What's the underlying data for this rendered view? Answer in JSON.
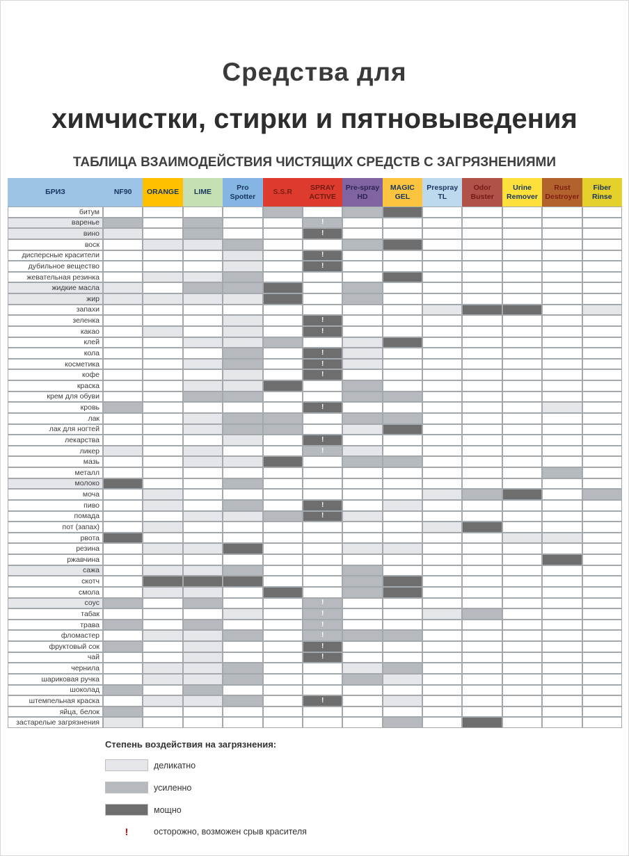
{
  "title_line1": "Средства для",
  "title_line2": "химчистки, стирки и пятновыведения",
  "subtitle": "ТАБЛИЦА ВЗАИМОДЕЙСТВИЯ ЧИСТЯЩИХ СРЕДСТВ С ЗАГРЯЗНЕНИЯМИ",
  "colors": {
    "level1": "#e4e6e9",
    "level2": "#b6b9bd",
    "level3": "#6e6e6e",
    "grid": "#a3a8ad",
    "warn_red": "#c00000"
  },
  "legend": {
    "title": "Степень воздействия на загрязнения:",
    "items": [
      {
        "level": "1",
        "label": "деликатно"
      },
      {
        "level": "2",
        "label": "усиленно"
      },
      {
        "level": "3",
        "label": "мощно"
      }
    ],
    "warning_symbol": "!",
    "warning_label": "осторожно, возможен срыв красителя"
  },
  "chart_data": {
    "type": "heatmap",
    "title": "ТАБЛИЦА ВЗАИМОДЕЙСТВИЯ ЧИСТЯЩИХ СРЕДСТВ С ЗАГРЯЗНЕНИЯМИ",
    "value_scale": {
      "": "нет воздействия",
      "1": "деликатно",
      "2": "усиленно",
      "3": "мощно",
      "!": "осторожно, возможен срыв красителя"
    },
    "columns": [
      {
        "label": "БРИЗ",
        "bg": "#9dc3e6",
        "fg": "#17365d"
      },
      {
        "label": "NF90",
        "bg": "#9dc3e6",
        "fg": "#17365d"
      },
      {
        "label": "ORANGE",
        "bg": "#ffc000",
        "fg": "#17365d"
      },
      {
        "label": "LIME",
        "bg": "#c6e0b4",
        "fg": "#17365d"
      },
      {
        "label": "Pro Spotter",
        "bg": "#85b5e2",
        "fg": "#17365d"
      },
      {
        "label": "S.S.R",
        "bg": "#dd3b2d",
        "fg": "#7f1d12"
      },
      {
        "label": "SPRAY ACTIVE",
        "bg": "#dd3b2d",
        "fg": "#701a10"
      },
      {
        "label": "Pre-spray HD",
        "bg": "#8064a2",
        "fg": "#2e2452"
      },
      {
        "label": "MAGIC GEL",
        "bg": "#fdc440",
        "fg": "#17365d"
      },
      {
        "label": "Prespray TL",
        "bg": "#bdd9ee",
        "fg": "#17365d"
      },
      {
        "label": "Odor Buster",
        "bg": "#b0524a",
        "fg": "#731a12"
      },
      {
        "label": "Urine Remover",
        "bg": "#fee03d",
        "fg": "#17365d"
      },
      {
        "label": "Rust Destroyer",
        "bg": "#b2622d",
        "fg": "#7f1d12"
      },
      {
        "label": "Fiber Rinse",
        "bg": "#e4cf2b",
        "fg": "#17365d"
      }
    ],
    "rows": [
      {
        "label": "битум",
        "values": [
          "",
          "",
          "",
          "",
          "",
          "2",
          "",
          "2",
          "3",
          "",
          "",
          "",
          "",
          ""
        ]
      },
      {
        "label": "варенье",
        "values": [
          "1",
          "2",
          "",
          "2",
          "",
          "",
          "2!",
          "",
          "",
          "",
          "",
          "",
          "",
          ""
        ]
      },
      {
        "label": "вино",
        "values": [
          "1",
          "1",
          "",
          "2",
          "",
          "",
          "3!",
          "",
          "",
          "",
          "",
          "",
          "",
          ""
        ]
      },
      {
        "label": "воск",
        "values": [
          "",
          "",
          "1",
          "1",
          "2",
          "",
          "",
          "2",
          "3",
          "",
          "",
          "",
          "",
          ""
        ]
      },
      {
        "label": "дисперсные красители",
        "values": [
          "",
          "",
          "",
          "",
          "1",
          "",
          "3!",
          "",
          "",
          "",
          "",
          "",
          "",
          ""
        ]
      },
      {
        "label": "дубильное вещество",
        "values": [
          "",
          "",
          "",
          "",
          "1",
          "",
          "3!",
          "",
          "",
          "",
          "",
          "",
          "",
          ""
        ]
      },
      {
        "label": "жевательная резинка",
        "values": [
          "",
          "",
          "1",
          "1",
          "2",
          "",
          "",
          "",
          "3",
          "",
          "",
          "",
          "",
          ""
        ]
      },
      {
        "label": "жидкие масла",
        "values": [
          "1",
          "1",
          "",
          "2",
          "2",
          "3",
          "",
          "2",
          "",
          "",
          "",
          "",
          "",
          ""
        ]
      },
      {
        "label": "жир",
        "values": [
          "1",
          "1",
          "1",
          "1",
          "1",
          "3",
          "",
          "2",
          "",
          "",
          "",
          "",
          "",
          ""
        ]
      },
      {
        "label": "запахи",
        "values": [
          "",
          "",
          "",
          "",
          "",
          "",
          "",
          "",
          "",
          "1",
          "3",
          "3",
          "",
          "1"
        ]
      },
      {
        "label": "зеленка",
        "values": [
          "",
          "",
          "",
          "",
          "1",
          "",
          "3!",
          "",
          "",
          "",
          "",
          "",
          "",
          ""
        ]
      },
      {
        "label": "какао",
        "values": [
          "",
          "",
          "1",
          "",
          "1",
          "",
          "3!",
          "",
          "",
          "",
          "",
          "",
          "",
          ""
        ]
      },
      {
        "label": "клей",
        "values": [
          "",
          "",
          "",
          "1",
          "1",
          "2",
          "",
          "1",
          "3",
          "",
          "",
          "",
          "",
          ""
        ]
      },
      {
        "label": "кола",
        "values": [
          "",
          "",
          "",
          "",
          "2",
          "",
          "3!",
          "1",
          "",
          "",
          "",
          "",
          "",
          ""
        ]
      },
      {
        "label": "косметика",
        "values": [
          "",
          "",
          "",
          "1",
          "2",
          "",
          "3!",
          "1",
          "",
          "",
          "",
          "",
          "",
          ""
        ]
      },
      {
        "label": "кофе",
        "values": [
          "",
          "",
          "",
          "",
          "1",
          "",
          "3!",
          "",
          "",
          "",
          "",
          "",
          "",
          ""
        ]
      },
      {
        "label": "краска",
        "values": [
          "",
          "",
          "",
          "1",
          "1",
          "3",
          "",
          "2",
          "",
          "",
          "",
          "",
          "",
          ""
        ]
      },
      {
        "label": "крем для обуви",
        "values": [
          "",
          "",
          "",
          "2",
          "2",
          "",
          "",
          "2",
          "2",
          "",
          "",
          "",
          "",
          ""
        ]
      },
      {
        "label": "кровь",
        "values": [
          "",
          "2",
          "",
          "",
          "",
          "",
          "3!",
          "",
          "",
          "",
          "",
          "",
          "1",
          ""
        ]
      },
      {
        "label": "лак",
        "values": [
          "",
          "",
          "",
          "1",
          "2",
          "2",
          "",
          "2",
          "2",
          "",
          "",
          "",
          "",
          ""
        ]
      },
      {
        "label": "лак для ногтей",
        "values": [
          "",
          "",
          "",
          "1",
          "2",
          "2",
          "",
          "1",
          "3",
          "",
          "",
          "",
          "",
          ""
        ]
      },
      {
        "label": "лекарства",
        "values": [
          "",
          "",
          "",
          "",
          "1",
          "",
          "3!",
          "",
          "",
          "",
          "",
          "",
          "",
          ""
        ]
      },
      {
        "label": "ликер",
        "values": [
          "",
          "1",
          "",
          "1",
          "",
          "",
          "2!",
          "1",
          "",
          "",
          "",
          "",
          "",
          ""
        ]
      },
      {
        "label": "мазь",
        "values": [
          "",
          "",
          "",
          "1",
          "1",
          "3",
          "",
          "2",
          "2",
          "",
          "",
          "",
          "",
          ""
        ]
      },
      {
        "label": "металл",
        "values": [
          "",
          "",
          "",
          "",
          "",
          "",
          "",
          "",
          "",
          "",
          "",
          "",
          "2",
          ""
        ]
      },
      {
        "label": "молоко",
        "values": [
          "1",
          "3",
          "",
          "",
          "2",
          "",
          "",
          "",
          "",
          "",
          "",
          "",
          "",
          ""
        ]
      },
      {
        "label": "моча",
        "values": [
          "",
          "",
          "1",
          "",
          "",
          "",
          "",
          "",
          "",
          "1",
          "2",
          "3",
          "",
          "2"
        ]
      },
      {
        "label": "пиво",
        "values": [
          "",
          "",
          "1",
          "",
          "2",
          "",
          "3!",
          "",
          "1",
          "",
          "",
          "",
          "",
          ""
        ]
      },
      {
        "label": "помада",
        "values": [
          "",
          "",
          "",
          "1",
          "1",
          "2",
          "3!",
          "1",
          "",
          "",
          "",
          "",
          "",
          ""
        ]
      },
      {
        "label": "пот (запах)",
        "values": [
          "",
          "",
          "1",
          "",
          "",
          "",
          "",
          "",
          "",
          "1",
          "3",
          "",
          "",
          ""
        ]
      },
      {
        "label": "рвота",
        "values": [
          "",
          "3",
          "",
          "",
          "",
          "",
          "",
          "",
          "",
          "",
          "",
          "1",
          "1",
          ""
        ]
      },
      {
        "label": "резина",
        "values": [
          "",
          "",
          "1",
          "1",
          "3",
          "",
          "",
          "1",
          "1",
          "",
          "",
          "",
          "",
          ""
        ]
      },
      {
        "label": "ржавчина",
        "values": [
          "",
          "",
          "",
          "",
          "",
          "",
          "",
          "",
          "",
          "",
          "",
          "",
          "3",
          ""
        ]
      },
      {
        "label": "сажа",
        "values": [
          "1",
          "",
          "1",
          "1",
          "2",
          "",
          "",
          "2",
          "",
          "",
          "",
          "",
          "",
          ""
        ]
      },
      {
        "label": "скотч",
        "values": [
          "",
          "",
          "3",
          "3",
          "3",
          "",
          "",
          "2",
          "3",
          "",
          "",
          "",
          "",
          ""
        ]
      },
      {
        "label": "смола",
        "values": [
          "",
          "",
          "1",
          "1",
          "",
          "3",
          "",
          "2",
          "3",
          "",
          "",
          "",
          "",
          ""
        ]
      },
      {
        "label": "соус",
        "values": [
          "1",
          "2",
          "",
          "2",
          "",
          "",
          "2!",
          "",
          "",
          "",
          "",
          "",
          "",
          ""
        ]
      },
      {
        "label": "табак",
        "values": [
          "",
          "",
          "",
          "",
          "1",
          "",
          "2!",
          "",
          "",
          "1",
          "2",
          "",
          "",
          ""
        ]
      },
      {
        "label": "трава",
        "values": [
          "",
          "2",
          "",
          "2",
          "",
          "",
          "2!",
          "",
          "",
          "",
          "",
          "",
          "",
          ""
        ]
      },
      {
        "label": "фломастер",
        "values": [
          "",
          "",
          "1",
          "1",
          "2",
          "",
          "2!",
          "2",
          "2",
          "",
          "",
          "",
          "",
          ""
        ]
      },
      {
        "label": "фруктовый сок",
        "values": [
          "",
          "2",
          "",
          "1",
          "",
          "",
          "3!",
          "",
          "",
          "",
          "",
          "",
          "",
          ""
        ]
      },
      {
        "label": "чай",
        "values": [
          "",
          "",
          "",
          "1",
          "",
          "",
          "3!",
          "",
          "",
          "",
          "",
          "",
          "",
          ""
        ]
      },
      {
        "label": "чернила",
        "values": [
          "",
          "",
          "1",
          "1",
          "2",
          "",
          "",
          "1",
          "2",
          "",
          "",
          "",
          "",
          ""
        ]
      },
      {
        "label": "шариковая ручка",
        "values": [
          "",
          "",
          "1",
          "1",
          "2",
          "",
          "",
          "2",
          "1",
          "",
          "",
          "",
          "",
          ""
        ]
      },
      {
        "label": "шоколад",
        "values": [
          "",
          "2",
          "",
          "2",
          "",
          "",
          "",
          "",
          "",
          "",
          "",
          "",
          "",
          ""
        ]
      },
      {
        "label": "штемпельная краска",
        "values": [
          "",
          "",
          "1",
          "1",
          "2",
          "",
          "3!",
          "",
          "1",
          "",
          "",
          "",
          "",
          ""
        ]
      },
      {
        "label": "яйца, белок",
        "values": [
          "",
          "2",
          "",
          "",
          "",
          "",
          "",
          "",
          "",
          "",
          "",
          "",
          "",
          ""
        ]
      },
      {
        "label": "застарелые загрязнения",
        "values": [
          "",
          "1",
          "",
          "",
          "",
          "",
          "",
          "",
          "2",
          "",
          "3",
          "",
          "",
          ""
        ]
      }
    ]
  }
}
